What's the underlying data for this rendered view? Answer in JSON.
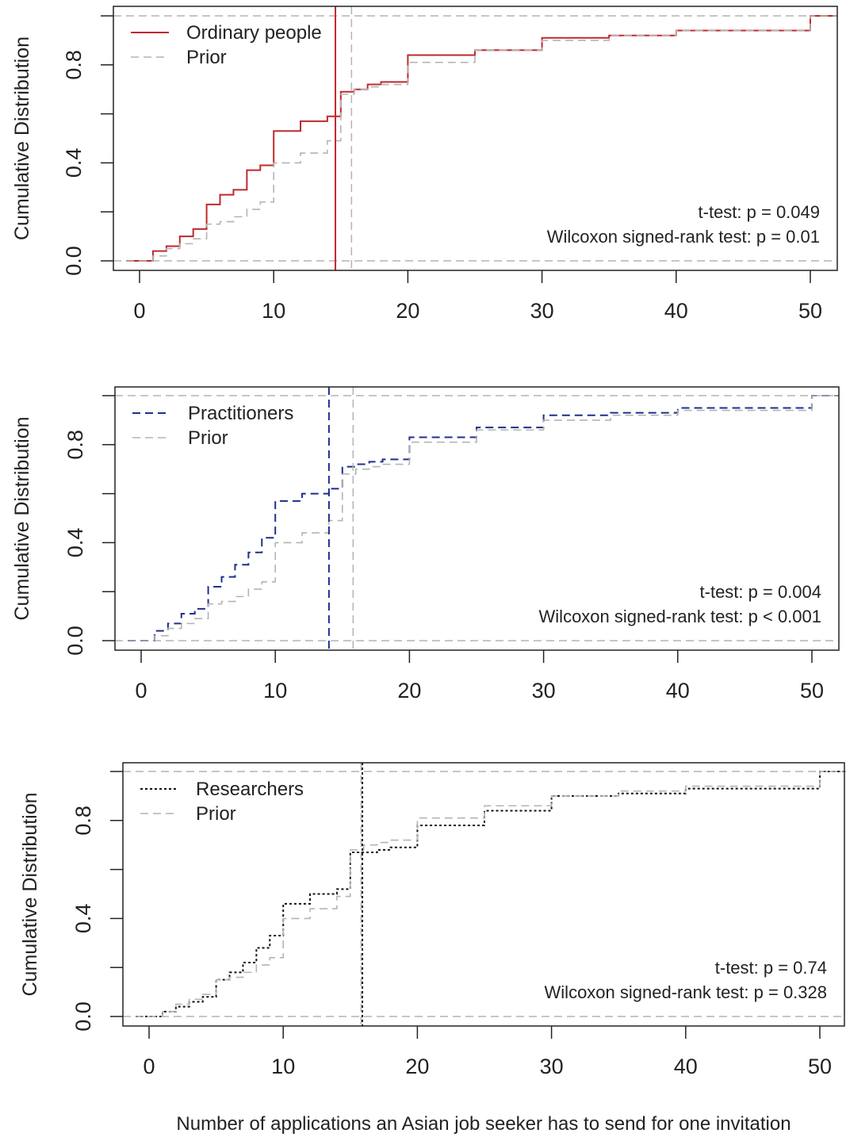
{
  "figure": {
    "xlabel": "Number of applications an Asian job seeker has to send for one invitation"
  },
  "chart_data": [
    {
      "type": "line",
      "subtype": "ecdf-step",
      "ylabel": "Cumulative Distribution",
      "xlim": [
        -2,
        52
      ],
      "ylim": [
        0,
        1
      ],
      "x_ticks": [
        "0",
        "10",
        "20",
        "30",
        "40",
        "50"
      ],
      "y_ticks": [
        "0.0",
        "0.4",
        "0.8"
      ],
      "legend_position": "top-left",
      "series": [
        {
          "name": "Ordinary people",
          "color": "#c0282d",
          "dash": "solid",
          "x": [
            -1,
            1,
            2,
            3,
            4,
            5,
            6,
            7,
            8,
            9,
            10,
            12,
            14,
            15,
            16,
            17,
            18,
            20,
            25,
            30,
            35,
            40,
            50,
            52
          ],
          "y": [
            0,
            0.04,
            0.06,
            0.1,
            0.13,
            0.23,
            0.27,
            0.29,
            0.37,
            0.39,
            0.53,
            0.57,
            0.59,
            0.69,
            0.7,
            0.72,
            0.73,
            0.84,
            0.86,
            0.91,
            0.92,
            0.94,
            1.0,
            1.0
          ],
          "mean": 14.6
        },
        {
          "name": "Prior",
          "color": "#b4b4b4",
          "dash": "dashed",
          "x": [
            -1,
            1,
            2,
            3,
            4,
            5,
            6,
            7,
            8,
            9,
            10,
            12,
            14,
            15,
            16,
            17,
            18,
            20,
            25,
            30,
            35,
            40,
            50,
            52
          ],
          "y": [
            0,
            0.02,
            0.05,
            0.07,
            0.09,
            0.15,
            0.16,
            0.18,
            0.21,
            0.24,
            0.4,
            0.44,
            0.49,
            0.68,
            0.7,
            0.71,
            0.72,
            0.81,
            0.86,
            0.9,
            0.92,
            0.94,
            1.0,
            1.0
          ],
          "mean": 15.8
        }
      ],
      "annotations": [
        "t-test: p = 0.049",
        "Wilcoxon signed-rank test: p = 0.01"
      ]
    },
    {
      "type": "line",
      "subtype": "ecdf-step",
      "ylabel": "Cumulative Distribution",
      "xlim": [
        -2,
        52
      ],
      "ylim": [
        0,
        1
      ],
      "x_ticks": [
        "0",
        "10",
        "20",
        "30",
        "40",
        "50"
      ],
      "y_ticks": [
        "0.0",
        "0.4",
        "0.8"
      ],
      "legend_position": "top-left",
      "series": [
        {
          "name": "Practitioners",
          "color": "#1f2f8c",
          "dash": "dashed",
          "x": [
            -1,
            1,
            2,
            3,
            4,
            5,
            6,
            7,
            8,
            9,
            10,
            12,
            14,
            15,
            16,
            17,
            18,
            20,
            25,
            30,
            35,
            40,
            50,
            52
          ],
          "y": [
            0,
            0.04,
            0.07,
            0.11,
            0.13,
            0.22,
            0.26,
            0.31,
            0.36,
            0.42,
            0.57,
            0.6,
            0.62,
            0.71,
            0.72,
            0.73,
            0.74,
            0.83,
            0.87,
            0.92,
            0.93,
            0.95,
            1.0,
            1.0
          ],
          "mean": 14.0
        },
        {
          "name": "Prior",
          "color": "#b4b4b4",
          "dash": "dashed",
          "x": [
            -1,
            1,
            2,
            3,
            4,
            5,
            6,
            7,
            8,
            9,
            10,
            12,
            14,
            15,
            16,
            17,
            18,
            20,
            25,
            30,
            35,
            40,
            50,
            52
          ],
          "y": [
            0,
            0.02,
            0.05,
            0.07,
            0.09,
            0.15,
            0.16,
            0.18,
            0.21,
            0.24,
            0.4,
            0.44,
            0.49,
            0.68,
            0.7,
            0.71,
            0.72,
            0.81,
            0.86,
            0.9,
            0.92,
            0.94,
            1.0,
            1.0
          ],
          "mean": 15.8
        }
      ],
      "annotations": [
        "t-test: p = 0.004",
        "Wilcoxon signed-rank test: p < 0.001"
      ]
    },
    {
      "type": "line",
      "subtype": "ecdf-step",
      "ylabel": "Cumulative Distribution",
      "xlim": [
        -2,
        52
      ],
      "ylim": [
        0,
        1
      ],
      "x_ticks": [
        "0",
        "10",
        "20",
        "30",
        "40",
        "50"
      ],
      "y_ticks": [
        "0.0",
        "0.4",
        "0.8"
      ],
      "legend_position": "top-left",
      "series": [
        {
          "name": "Researchers",
          "color": "#111111",
          "dash": "dotted",
          "x": [
            -1,
            1,
            2,
            3,
            4,
            5,
            6,
            7,
            8,
            9,
            10,
            12,
            14,
            15,
            16,
            17,
            18,
            20,
            25,
            30,
            35,
            40,
            50,
            52
          ],
          "y": [
            0,
            0.02,
            0.04,
            0.06,
            0.08,
            0.15,
            0.18,
            0.22,
            0.28,
            0.33,
            0.46,
            0.5,
            0.52,
            0.67,
            0.67,
            0.68,
            0.69,
            0.78,
            0.84,
            0.9,
            0.91,
            0.93,
            1.0,
            1.0
          ],
          "mean": 15.9
        },
        {
          "name": "Prior",
          "color": "#b4b4b4",
          "dash": "dashed",
          "x": [
            -1,
            1,
            2,
            3,
            4,
            5,
            6,
            7,
            8,
            9,
            10,
            12,
            14,
            15,
            16,
            17,
            18,
            20,
            25,
            30,
            35,
            40,
            50,
            52
          ],
          "y": [
            0,
            0.02,
            0.05,
            0.07,
            0.09,
            0.15,
            0.16,
            0.18,
            0.21,
            0.24,
            0.4,
            0.44,
            0.49,
            0.68,
            0.7,
            0.71,
            0.72,
            0.81,
            0.86,
            0.9,
            0.92,
            0.94,
            1.0,
            1.0
          ],
          "mean": 15.8
        }
      ],
      "annotations": [
        "t-test: p = 0.74",
        "Wilcoxon signed-rank test: p = 0.328"
      ]
    }
  ]
}
